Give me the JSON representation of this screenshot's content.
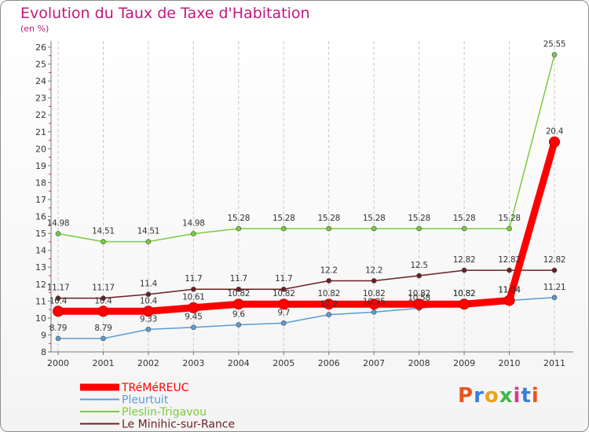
{
  "title": "Evolution du Taux de Taxe d'Habitation",
  "subtitle": "(en %)",
  "logo_text": "Proxiti",
  "chart_data": {
    "type": "line",
    "title": "Evolution du Taux de Taxe d'Habitation",
    "ylabel": "(en %)",
    "xlabel": "",
    "x": [
      "2000",
      "2001",
      "2002",
      "2003",
      "2004",
      "2005",
      "2006",
      "2007",
      "2008",
      "2009",
      "2010",
      "2011"
    ],
    "ylim": [
      8,
      26
    ],
    "yticks": [
      8,
      9,
      10,
      11,
      12,
      13,
      14,
      15,
      16,
      17,
      18,
      19,
      20,
      21,
      22,
      23,
      24,
      25,
      26
    ],
    "grid": "vertical dashed",
    "legend_position": "bottom-left",
    "series": [
      {
        "name": "TRéMéREUC",
        "color": "#ff0000",
        "values": [
          10.4,
          10.4,
          10.4,
          10.61,
          10.82,
          10.82,
          10.82,
          10.82,
          10.82,
          10.82,
          11.04,
          20.4
        ],
        "labels": [
          "10.4",
          "10.4",
          "10.4",
          "10.61",
          "10.82",
          "10.82",
          "10.82",
          "10.82",
          "10.82",
          "10.82",
          "11.04",
          "20.4"
        ]
      },
      {
        "name": "Pleurtuit",
        "color": "#5b9bd5",
        "values": [
          8.79,
          8.79,
          9.33,
          9.45,
          9.6,
          9.7,
          10.2,
          10.35,
          10.58,
          10.82,
          11.04,
          11.21
        ],
        "labels": [
          "8.79",
          "8.79",
          "9.33",
          "9.45",
          "9.6",
          "9.7",
          "10.2",
          "10.35",
          "10.58",
          "10.82",
          "11.04",
          "11.21"
        ]
      },
      {
        "name": "Pleslin-Trigavou",
        "color": "#7acc3c",
        "values": [
          14.98,
          14.51,
          14.51,
          14.98,
          15.28,
          15.28,
          15.28,
          15.28,
          15.28,
          15.28,
          15.28,
          25.55
        ],
        "labels": [
          "14.98",
          "14.51",
          "14.51",
          "14.98",
          "15.28",
          "15.28",
          "15.28",
          "15.28",
          "15.28",
          "15.28",
          "15.28",
          "25.55"
        ]
      },
      {
        "name": "Le Minihic-sur-Rance",
        "color": "#6b1f1f",
        "values": [
          11.17,
          11.17,
          11.4,
          11.7,
          11.7,
          11.7,
          12.2,
          12.2,
          12.5,
          12.82,
          12.82,
          12.82
        ],
        "labels": [
          "11.17",
          "11.17",
          "11.4",
          "11.7",
          "11.7",
          "11.7",
          "12.2",
          "12.2",
          "12.5",
          "12.82",
          "12.82",
          "12.82"
        ]
      }
    ]
  }
}
